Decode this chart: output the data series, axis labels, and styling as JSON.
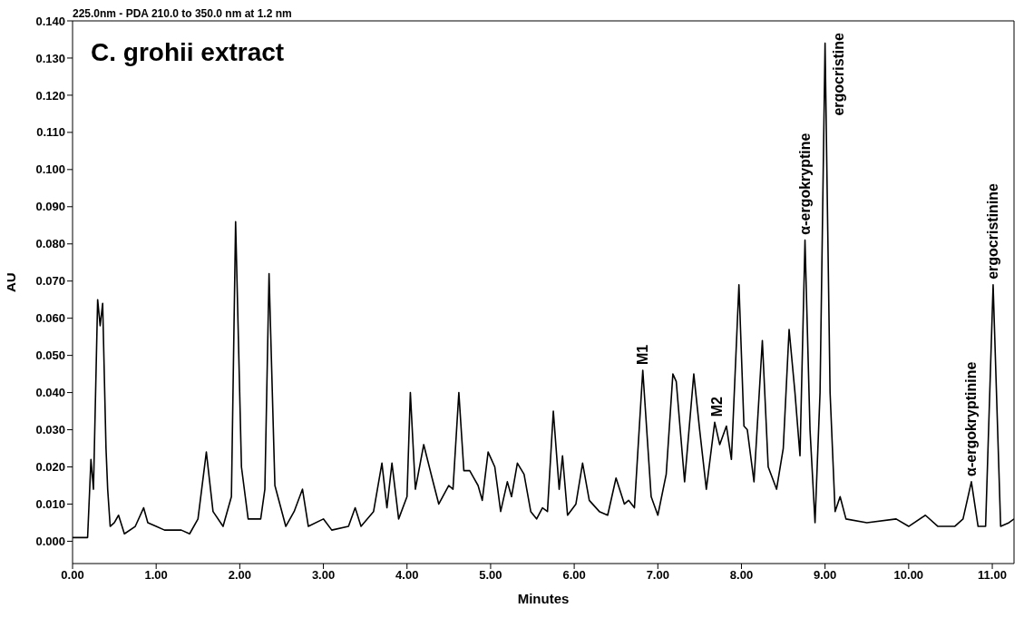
{
  "chart_data": {
    "type": "line",
    "title": "C. grohii extract",
    "subtitle": "225.0nm - PDA 210.0 to 350.0 nm at 1.2 nm",
    "xlabel": "Minutes",
    "ylabel": "AU",
    "x": [
      0.0,
      0.18,
      0.22,
      0.25,
      0.3,
      0.33,
      0.36,
      0.4,
      0.42,
      0.45,
      0.5,
      0.55,
      0.62,
      0.75,
      0.85,
      0.9,
      1.0,
      1.1,
      1.3,
      1.4,
      1.5,
      1.6,
      1.68,
      1.8,
      1.9,
      1.95,
      2.02,
      2.1,
      2.25,
      2.3,
      2.35,
      2.42,
      2.55,
      2.65,
      2.75,
      2.82,
      3.0,
      3.1,
      3.3,
      3.38,
      3.45,
      3.6,
      3.7,
      3.76,
      3.82,
      3.9,
      4.0,
      4.04,
      4.1,
      4.2,
      4.3,
      4.38,
      4.5,
      4.55,
      4.62,
      4.68,
      4.75,
      4.8,
      4.85,
      4.9,
      4.97,
      5.05,
      5.12,
      5.2,
      5.25,
      5.32,
      5.4,
      5.48,
      5.55,
      5.62,
      5.68,
      5.75,
      5.82,
      5.86,
      5.92,
      6.02,
      6.1,
      6.18,
      6.3,
      6.4,
      6.5,
      6.6,
      6.65,
      6.72,
      6.82,
      6.92,
      7.0,
      7.1,
      7.18,
      7.22,
      7.32,
      7.43,
      7.5,
      7.58,
      7.68,
      7.74,
      7.82,
      7.88,
      7.97,
      8.03,
      8.07,
      8.15,
      8.25,
      8.32,
      8.42,
      8.5,
      8.57,
      8.64,
      8.7,
      8.76,
      8.82,
      8.88,
      8.94,
      9.0,
      9.06,
      9.12,
      9.18,
      9.25,
      9.5,
      9.85,
      10.0,
      10.2,
      10.35,
      10.55,
      10.65,
      10.75,
      10.83,
      10.92,
      11.01,
      11.1,
      11.2,
      11.26
    ],
    "series": [
      {
        "color": "#000000",
        "values": [
          0.001,
          0.001,
          0.022,
          0.014,
          0.065,
          0.058,
          0.064,
          0.025,
          0.014,
          0.004,
          0.005,
          0.007,
          0.002,
          0.004,
          0.009,
          0.005,
          0.004,
          0.003,
          0.003,
          0.002,
          0.006,
          0.024,
          0.008,
          0.004,
          0.012,
          0.086,
          0.02,
          0.006,
          0.006,
          0.014,
          0.072,
          0.015,
          0.004,
          0.008,
          0.014,
          0.004,
          0.006,
          0.003,
          0.004,
          0.009,
          0.004,
          0.008,
          0.021,
          0.009,
          0.021,
          0.006,
          0.012,
          0.04,
          0.014,
          0.026,
          0.017,
          0.01,
          0.015,
          0.014,
          0.04,
          0.019,
          0.019,
          0.017,
          0.015,
          0.011,
          0.024,
          0.02,
          0.008,
          0.016,
          0.012,
          0.021,
          0.018,
          0.008,
          0.006,
          0.009,
          0.008,
          0.035,
          0.014,
          0.023,
          0.007,
          0.01,
          0.021,
          0.011,
          0.008,
          0.007,
          0.017,
          0.01,
          0.011,
          0.009,
          0.046,
          0.012,
          0.007,
          0.018,
          0.045,
          0.043,
          0.016,
          0.045,
          0.03,
          0.014,
          0.032,
          0.026,
          0.031,
          0.022,
          0.069,
          0.031,
          0.03,
          0.016,
          0.054,
          0.02,
          0.014,
          0.025,
          0.057,
          0.04,
          0.023,
          0.081,
          0.03,
          0.005,
          0.04,
          0.134,
          0.04,
          0.008,
          0.012,
          0.006,
          0.005,
          0.006,
          0.004,
          0.007,
          0.004,
          0.004,
          0.006,
          0.016,
          0.004,
          0.004,
          0.069,
          0.004,
          0.005,
          0.006
        ]
      }
    ],
    "xlim": [
      0,
      11.26
    ],
    "xticks": [
      {
        "value": 0,
        "label": "0.00"
      },
      {
        "value": 1,
        "label": "1.00"
      },
      {
        "value": 2,
        "label": "2.00"
      },
      {
        "value": 3,
        "label": "3.00"
      },
      {
        "value": 4,
        "label": "4.00"
      },
      {
        "value": 5,
        "label": "5.00"
      },
      {
        "value": 6,
        "label": "6.00"
      },
      {
        "value": 7,
        "label": "7.00"
      },
      {
        "value": 8,
        "label": "8.00"
      },
      {
        "value": 9,
        "label": "9.00"
      },
      {
        "value": 10,
        "label": "10.00"
      },
      {
        "value": 11,
        "label": "11.00"
      }
    ],
    "ylim": [
      -0.006,
      0.14
    ],
    "yticks": [
      {
        "value": 0,
        "label": "0.000"
      },
      {
        "value": 0.01,
        "label": "0.010"
      },
      {
        "value": 0.02,
        "label": "0.020"
      },
      {
        "value": 0.03,
        "label": "0.030"
      },
      {
        "value": 0.04,
        "label": "0.040"
      },
      {
        "value": 0.05,
        "label": "0.050"
      },
      {
        "value": 0.06,
        "label": "0.060"
      },
      {
        "value": 0.07,
        "label": "0.070"
      },
      {
        "value": 0.08,
        "label": "0.080"
      },
      {
        "value": 0.09,
        "label": "0.090"
      },
      {
        "value": 0.1,
        "label": "0.100"
      },
      {
        "value": 0.11,
        "label": "0.110"
      },
      {
        "value": 0.12,
        "label": "0.120"
      },
      {
        "value": 0.13,
        "label": "0.130"
      },
      {
        "value": 0.14,
        "label": "0.140"
      }
    ],
    "annotations": [
      {
        "text": "M1",
        "x": 6.82,
        "y": 0.046
      },
      {
        "text": "M2",
        "x": 7.71,
        "y": 0.032
      },
      {
        "text": "α-ergokryptine",
        "x": 8.76,
        "y": 0.081
      },
      {
        "text": "ergocristine",
        "x": 9.0,
        "y": 0.134
      },
      {
        "text": "α-ergokryptinine",
        "x": 10.75,
        "y": 0.016
      },
      {
        "text": "ergocristinine",
        "x": 11.01,
        "y": 0.069
      }
    ],
    "grid": false,
    "legend": false,
    "marker": "none",
    "line_style": "solid"
  }
}
